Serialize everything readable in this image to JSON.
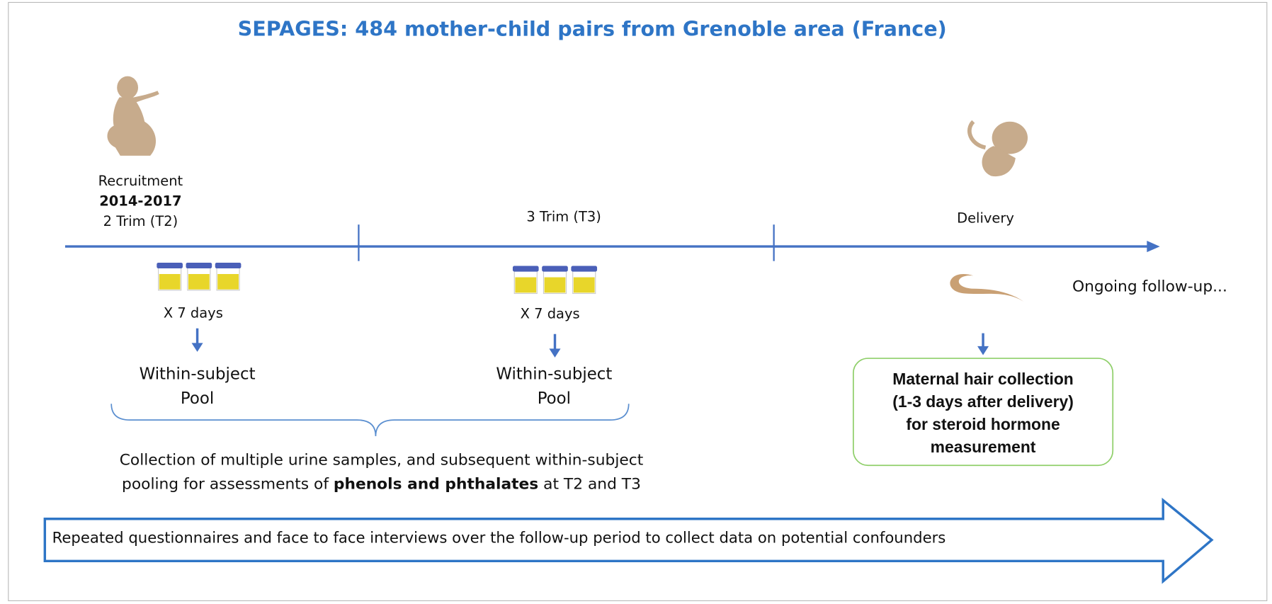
{
  "title": "SEPAGES: 484 mother-child pairs from Grenoble area (France)",
  "timeline": {
    "recruitment": [
      "Recruitment",
      "2014-2017",
      "2 Trim (T2)"
    ],
    "t3": "3 Trim (T3)",
    "delivery": "Delivery"
  },
  "stages": [
    {
      "duration": "X 7 days",
      "pool": [
        "Within-subject",
        "Pool"
      ]
    },
    {
      "duration": "X 7 days",
      "pool": [
        "Within-subject",
        "Pool"
      ]
    }
  ],
  "urine_note": {
    "line1": "Collection of multiple urine samples, and subsequent within-subject",
    "line2_start": "pooling for assessments of ",
    "line2_bold": "phenols and phthalates",
    "line2_end": " at T2 and T3"
  },
  "hair_box": [
    "Maternal hair collection",
    "(1-3 days after delivery)",
    "for steroid hormone",
    "measurement"
  ],
  "follow_up": "Ongoing follow-up...",
  "arrow_text": "Repeated questionnaires and face to face interviews over the follow-up period to collect data on potential confounders"
}
